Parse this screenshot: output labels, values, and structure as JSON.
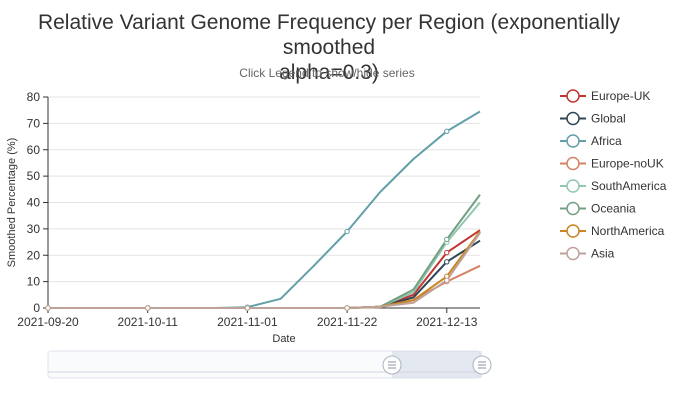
{
  "title_line1": "Relative Variant Genome Frequency per Region (exponentially smoothed",
  "title_line2": "alpha=0.3)",
  "subtitle": "Click Legend to show/hide series",
  "chart_data": {
    "type": "line",
    "title": "Relative Variant Genome Frequency per Region (exponentially smoothed alpha=0.3)",
    "subtitle": "Click Legend to show/hide series",
    "xlabel": "Date",
    "ylabel": "Smoothed Percentage (%)",
    "x_ticks": [
      "2021-09-20",
      "2021-10-11",
      "2021-11-01",
      "2021-11-22",
      "2021-12-13"
    ],
    "xlim": [
      "2021-09-20",
      "2021-12-20"
    ],
    "ylim": [
      0,
      80
    ],
    "y_ticks": [
      0,
      10,
      20,
      30,
      40,
      50,
      60,
      70,
      80
    ],
    "grid": "horizontal",
    "legend_position": "right",
    "has_data_zoom_slider": true,
    "x": [
      "2021-09-20",
      "2021-09-27",
      "2021-10-04",
      "2021-10-11",
      "2021-10-18",
      "2021-10-25",
      "2021-11-01",
      "2021-11-08",
      "2021-11-15",
      "2021-11-22",
      "2021-11-29",
      "2021-12-06",
      "2021-12-13",
      "2021-12-20"
    ],
    "series": [
      {
        "name": "Europe-UK",
        "color": "#c23531",
        "values": [
          0,
          0,
          0,
          0,
          0,
          0,
          0,
          0,
          0,
          0,
          0.5,
          5,
          21,
          29.5
        ]
      },
      {
        "name": "Global",
        "color": "#2f4554",
        "values": [
          0,
          0,
          0,
          0,
          0,
          0,
          0,
          0,
          0,
          0,
          0.5,
          4,
          17.5,
          25.5
        ]
      },
      {
        "name": "Africa",
        "color": "#61a0a8",
        "values": [
          0,
          0,
          0,
          0,
          0,
          0,
          0.3,
          3.5,
          16,
          29,
          44,
          56.5,
          67,
          74.5
        ]
      },
      {
        "name": "Europe-noUK",
        "color": "#d48265",
        "values": [
          0,
          0,
          0,
          0,
          0,
          0,
          0,
          0,
          0,
          0,
          0.3,
          3,
          10,
          16
        ]
      },
      {
        "name": "SouthAmerica",
        "color": "#91c7ae",
        "values": [
          0,
          0,
          0,
          0,
          0,
          0,
          0,
          0,
          0,
          0,
          0.5,
          6,
          25,
          40
        ]
      },
      {
        "name": "Oceania",
        "color": "#749f83",
        "values": [
          0,
          0,
          0,
          0,
          0,
          0,
          0,
          0,
          0,
          0,
          0.5,
          7,
          26,
          43
        ]
      },
      {
        "name": "NorthAmerica",
        "color": "#ca8622",
        "values": [
          0,
          0,
          0,
          0,
          0,
          0,
          0,
          0,
          0,
          0,
          0.5,
          3,
          12,
          29
        ]
      },
      {
        "name": "Asia",
        "color": "#bda29a",
        "values": [
          0,
          0,
          0,
          0,
          0,
          0,
          0,
          0,
          0,
          0,
          0.5,
          2,
          10.5,
          28.5
        ]
      }
    ]
  }
}
